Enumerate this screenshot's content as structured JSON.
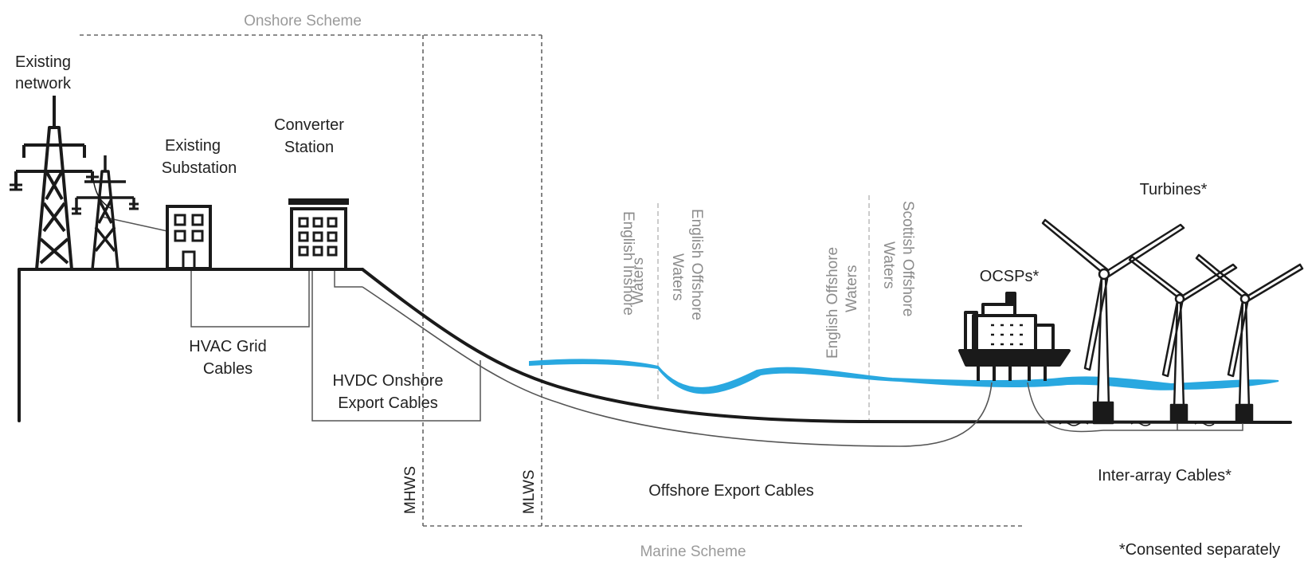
{
  "labels": {
    "onshore_scheme": "Onshore Scheme",
    "marine_scheme": "Marine Scheme",
    "existing_network_1": "Existing",
    "existing_network_2": "network",
    "existing_substation_1": "Existing",
    "existing_substation_2": "Substation",
    "converter_station_1": "Converter",
    "converter_station_2": "Station",
    "hvac_cables_1": "HVAC Grid",
    "hvac_cables_2": "Cables",
    "hvdc_cables_1": "HVDC Onshore",
    "hvdc_cables_2": "Export Cables",
    "mhws": "MHWS",
    "mlws": "MLWS",
    "english_inshore_1": "English Inshore",
    "english_inshore_2": "Waters",
    "english_offshore_a_1": "English Offshore",
    "english_offshore_a_2": "Waters",
    "english_offshore_b_1": "English Offshore",
    "english_offshore_b_2": "Waters",
    "scottish_offshore_1": "Scottish Offshore",
    "scottish_offshore_2": "Waters",
    "ocsps": "OCSPs*",
    "turbines": "Turbines*",
    "offshore_export_cables": "Offshore  Export Cables",
    "inter_array_cables": "Inter-array Cables*",
    "consented_separately": "*Consented separately"
  },
  "colors": {
    "line": "#1a1a1a",
    "cable": "#555555",
    "water": "#29a8e0",
    "guide": "#9a9a9a"
  }
}
